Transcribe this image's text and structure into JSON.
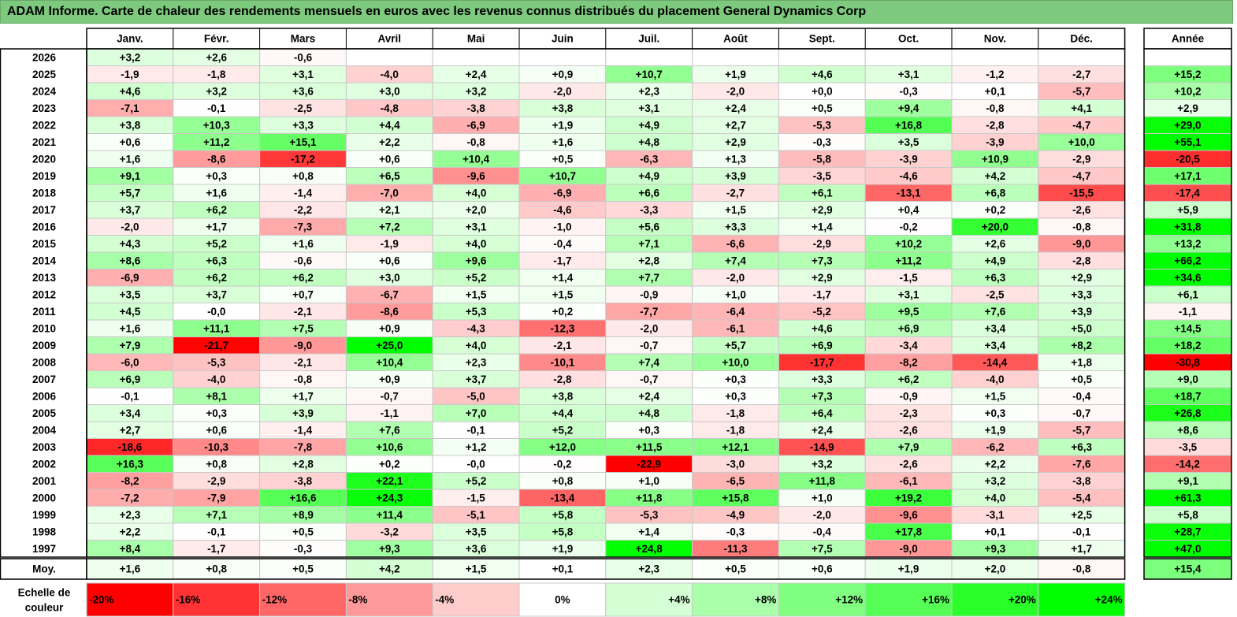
{
  "title": "ADAM Informe. Carte de chaleur des rendements mensuels en euros avec les revenus connus distribués du placement General Dynamics Corp",
  "chart_data": {
    "type": "heatmap",
    "months": [
      "Janv.",
      "Févr.",
      "Mars",
      "Avril",
      "Mai",
      "Juin",
      "Juil.",
      "Août",
      "Sept.",
      "Oct.",
      "Nov.",
      "Déc."
    ],
    "year_header": "Année",
    "rows": [
      {
        "label": "2026",
        "values": [
          "+3,2",
          "+2,6",
          "-0,6",
          "",
          "",
          "",
          "",
          "",
          "",
          "",
          "",
          ""
        ],
        "year": ""
      },
      {
        "label": "2025",
        "values": [
          "-1,9",
          "-1,8",
          "+3,1",
          "-4,0",
          "+2,4",
          "+0,9",
          "+10,7",
          "+1,9",
          "+4,6",
          "+3,1",
          "-1,2",
          "-2,7"
        ],
        "year": "+15,2"
      },
      {
        "label": "2024",
        "values": [
          "+4,6",
          "+3,2",
          "+3,6",
          "+3,0",
          "+3,2",
          "-2,0",
          "+2,3",
          "-2,0",
          "+0,0",
          "-0,3",
          "+0,1",
          "-5,7"
        ],
        "year": "+10,2"
      },
      {
        "label": "2023",
        "values": [
          "-7,1",
          "-0,1",
          "-2,5",
          "-4,8",
          "-3,8",
          "+3,8",
          "+3,1",
          "+2,4",
          "+0,5",
          "+9,4",
          "-0,8",
          "+4,1"
        ],
        "year": "+2,9"
      },
      {
        "label": "2022",
        "values": [
          "+3,8",
          "+10,3",
          "+3,3",
          "+4,4",
          "-6,9",
          "+1,9",
          "+4,9",
          "+2,7",
          "-5,3",
          "+16,8",
          "-2,8",
          "-4,7"
        ],
        "year": "+29,0"
      },
      {
        "label": "2021",
        "values": [
          "+0,6",
          "+11,2",
          "+15,1",
          "+2,2",
          "-0,8",
          "+1,6",
          "+4,8",
          "+2,9",
          "-0,3",
          "+3,5",
          "-3,9",
          "+10,0"
        ],
        "year": "+55,1"
      },
      {
        "label": "2020",
        "values": [
          "+1,6",
          "-8,6",
          "-17,2",
          "+0,6",
          "+10,4",
          "+0,5",
          "-6,3",
          "+1,3",
          "-5,8",
          "-3,9",
          "+10,9",
          "-2,9"
        ],
        "year": "-20,5"
      },
      {
        "label": "2019",
        "values": [
          "+9,1",
          "+0,3",
          "+0,8",
          "+6,5",
          "-9,6",
          "+10,7",
          "+4,9",
          "+3,9",
          "-3,5",
          "-4,6",
          "+4,2",
          "-4,7"
        ],
        "year": "+17,1"
      },
      {
        "label": "2018",
        "values": [
          "+5,7",
          "+1,6",
          "-1,4",
          "-7,0",
          "+4,0",
          "-6,9",
          "+6,6",
          "-2,7",
          "+6,1",
          "-13,1",
          "+6,8",
          "-15,5"
        ],
        "year": "-17,4"
      },
      {
        "label": "2017",
        "values": [
          "+3,7",
          "+6,2",
          "-2,2",
          "+2,1",
          "+2,0",
          "-4,6",
          "-3,3",
          "+1,5",
          "+2,9",
          "+0,4",
          "+0,2",
          "-2,6"
        ],
        "year": "+5,9"
      },
      {
        "label": "2016",
        "values": [
          "-2,0",
          "+1,7",
          "-7,3",
          "+7,2",
          "+3,1",
          "-1,0",
          "+5,6",
          "+3,3",
          "+1,4",
          "-0,2",
          "+20,0",
          "-0,8"
        ],
        "year": "+31,8"
      },
      {
        "label": "2015",
        "values": [
          "+4,3",
          "+5,2",
          "+1,6",
          "-1,9",
          "+4,0",
          "-0,4",
          "+7,1",
          "-6,6",
          "-2,9",
          "+10,2",
          "+2,6",
          "-9,0"
        ],
        "year": "+13,2"
      },
      {
        "label": "2014",
        "values": [
          "+8,6",
          "+6,3",
          "-0,6",
          "+0,6",
          "+9,6",
          "-1,7",
          "+2,8",
          "+7,4",
          "+7,3",
          "+11,2",
          "+4,9",
          "-2,8"
        ],
        "year": "+66,2"
      },
      {
        "label": "2013",
        "values": [
          "-6,9",
          "+6,2",
          "+6,2",
          "+3,0",
          "+5,2",
          "+1,4",
          "+7,7",
          "-2,0",
          "+2,9",
          "-1,5",
          "+6,3",
          "+2,9"
        ],
        "year": "+34,6"
      },
      {
        "label": "2012",
        "values": [
          "+3,5",
          "+3,7",
          "+0,7",
          "-6,7",
          "+1,5",
          "+1,5",
          "-0,9",
          "+1,0",
          "-1,7",
          "+3,1",
          "-2,5",
          "+3,3"
        ],
        "year": "+6,1"
      },
      {
        "label": "2011",
        "values": [
          "+4,5",
          "-0,0",
          "-2,1",
          "-8,6",
          "+5,3",
          "+0,2",
          "-7,7",
          "-6,4",
          "-5,2",
          "+9,5",
          "+7,6",
          "+3,9"
        ],
        "year": "-1,1"
      },
      {
        "label": "2010",
        "values": [
          "+1,6",
          "+11,1",
          "+7,5",
          "+0,9",
          "-4,3",
          "-12,3",
          "-2,0",
          "-6,1",
          "+4,6",
          "+6,9",
          "+3,4",
          "+5,0"
        ],
        "year": "+14,5"
      },
      {
        "label": "2009",
        "values": [
          "+7,9",
          "-21,7",
          "-9,0",
          "+25,0",
          "+4,0",
          "-2,1",
          "-0,7",
          "+5,7",
          "+6,9",
          "-3,4",
          "+3,4",
          "+8,2"
        ],
        "year": "+18,2"
      },
      {
        "label": "2008",
        "values": [
          "-6,0",
          "-5,3",
          "-2,1",
          "+10,4",
          "+2,3",
          "-10,1",
          "+7,4",
          "+10,0",
          "-17,7",
          "-8,2",
          "-14,4",
          "+1,8"
        ],
        "year": "-30,8"
      },
      {
        "label": "2007",
        "values": [
          "+6,9",
          "-4,0",
          "-0,8",
          "+0,9",
          "+3,7",
          "-2,8",
          "-0,7",
          "+0,3",
          "+3,3",
          "+6,2",
          "-4,0",
          "+0,5"
        ],
        "year": "+9,0"
      },
      {
        "label": "2006",
        "values": [
          "-0,1",
          "+8,1",
          "+1,7",
          "-0,7",
          "-5,0",
          "+3,8",
          "+2,4",
          "+0,3",
          "+7,3",
          "-0,9",
          "+1,5",
          "-0,4"
        ],
        "year": "+18,7"
      },
      {
        "label": "2005",
        "values": [
          "+3,4",
          "+0,3",
          "+3,9",
          "-1,1",
          "+7,0",
          "+4,4",
          "+4,8",
          "-1,8",
          "+6,4",
          "-2,3",
          "+0,3",
          "-0,7"
        ],
        "year": "+26,8"
      },
      {
        "label": "2004",
        "values": [
          "+2,7",
          "+0,6",
          "-1,4",
          "+7,6",
          "-0,1",
          "+5,2",
          "+0,3",
          "-1,8",
          "+2,4",
          "-2,6",
          "+1,9",
          "-5,7"
        ],
        "year": "+8,6"
      },
      {
        "label": "2003",
        "values": [
          "-18,6",
          "-10,3",
          "-7,8",
          "+10,6",
          "+1,2",
          "+12,0",
          "+11,5",
          "+12,1",
          "-14,9",
          "+7,9",
          "-6,2",
          "+6,3"
        ],
        "year": "-3,5"
      },
      {
        "label": "2002",
        "values": [
          "+16,3",
          "+0,8",
          "+2,8",
          "+0,2",
          "-0,0",
          "-0,2",
          "-22,9",
          "-3,0",
          "+3,2",
          "-2,6",
          "+2,2",
          "-7,6"
        ],
        "year": "-14,2"
      },
      {
        "label": "2001",
        "values": [
          "-8,2",
          "-2,9",
          "-3,8",
          "+22,1",
          "+5,2",
          "+0,8",
          "+1,0",
          "-6,5",
          "+11,8",
          "-6,1",
          "+3,2",
          "-3,8"
        ],
        "year": "+9,1"
      },
      {
        "label": "2000",
        "values": [
          "-7,2",
          "-7,9",
          "+16,6",
          "+24,3",
          "-1,5",
          "-13,4",
          "+11,8",
          "+15,8",
          "+1,0",
          "+19,2",
          "+4,0",
          "-5,4"
        ],
        "year": "+61,3"
      },
      {
        "label": "1999",
        "values": [
          "+2,3",
          "+7,1",
          "+8,9",
          "+11,4",
          "-5,1",
          "+5,8",
          "-5,3",
          "-4,9",
          "-2,0",
          "-9,6",
          "-3,1",
          "+2,5"
        ],
        "year": "+5,8"
      },
      {
        "label": "1998",
        "values": [
          "+2,2",
          "-0,1",
          "+0,5",
          "-3,2",
          "+3,5",
          "+5,8",
          "+1,4",
          "-0,3",
          "-0,4",
          "+17,8",
          "+0,1",
          "-0,1"
        ],
        "year": "+28,7"
      },
      {
        "label": "1997",
        "values": [
          "+8,4",
          "-1,7",
          "-0,3",
          "+9,3",
          "+3,6",
          "+1,9",
          "+24,8",
          "-11,3",
          "+7,5",
          "-9,0",
          "+9,3",
          "+1,7"
        ],
        "year": "+47,0"
      }
    ],
    "average": {
      "label": "Moy.",
      "values": [
        "+1,6",
        "+0,8",
        "+0,5",
        "+4,2",
        "+1,5",
        "+0,1",
        "+2,3",
        "+0,5",
        "+0,6",
        "+1,9",
        "+2,0",
        "-0,8"
      ],
      "year": "+15,4"
    },
    "scale": {
      "label_line1": "Echelle de",
      "label_line2": "couleur",
      "items": [
        "-20%",
        "-16%",
        "-12%",
        "-8%",
        "-4%",
        "0%",
        "+4%",
        "+8%",
        "+12%",
        "+16%",
        "+20%",
        "+24%"
      ]
    },
    "colors": {
      "negative_max": "#ff0000",
      "neutral": "#ffffff",
      "positive_max": "#00ff00",
      "title_bg": "#7dc97d"
    }
  }
}
